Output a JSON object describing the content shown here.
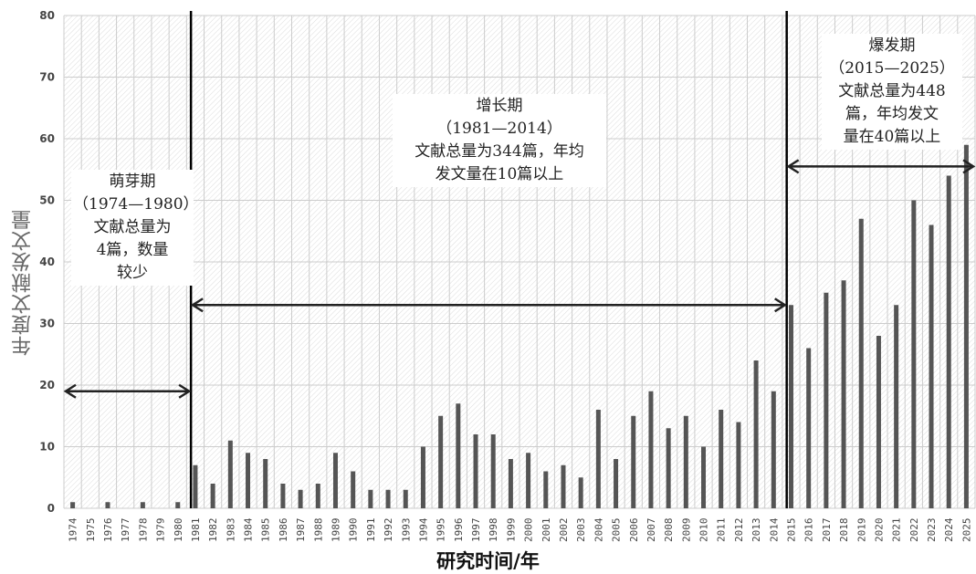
{
  "chart_data": {
    "type": "bar",
    "xlabel": "研究时间/年",
    "ylabel": "年度文献发文量",
    "ylim": [
      0,
      80
    ],
    "yticks": [
      0,
      10,
      20,
      30,
      40,
      50,
      60,
      70,
      80
    ],
    "grid": true,
    "categories": [
      "1974",
      "1975",
      "1976",
      "1977",
      "1978",
      "1979",
      "1980",
      "1981",
      "1982",
      "1983",
      "1984",
      "1985",
      "1986",
      "1987",
      "1988",
      "1989",
      "1990",
      "1991",
      "1992",
      "1993",
      "1994",
      "1995",
      "1996",
      "1997",
      "1998",
      "1999",
      "2000",
      "2001",
      "2002",
      "2003",
      "2004",
      "2005",
      "2006",
      "2007",
      "2008",
      "2009",
      "2010",
      "2011",
      "2012",
      "2013",
      "2014",
      "2015",
      "2016",
      "2017",
      "2018",
      "2019",
      "2020",
      "2021",
      "2022",
      "2023",
      "2024",
      "2025"
    ],
    "values": [
      1,
      0,
      1,
      0,
      1,
      0,
      1,
      7,
      4,
      11,
      9,
      8,
      4,
      3,
      4,
      9,
      6,
      3,
      3,
      3,
      10,
      15,
      17,
      12,
      12,
      8,
      9,
      6,
      7,
      5,
      16,
      8,
      15,
      19,
      13,
      15,
      10,
      16,
      14,
      24,
      19,
      33,
      26,
      35,
      37,
      47,
      28,
      33,
      50,
      46,
      54,
      59
    ],
    "colors": {
      "bar": "#555555",
      "grid": "#cccccc",
      "divider": "#000000",
      "arrow": "#222222"
    },
    "periods": [
      {
        "lines": [
          "萌芽期",
          "（1974—1980）",
          "文献总量为",
          "4篇，数量",
          "较少"
        ]
      },
      {
        "lines": [
          "增长期",
          "（1981—2014）",
          "文献总量为344篇，年均",
          "发文量在10篇以上"
        ]
      },
      {
        "lines": [
          "爆发期",
          "（2015—2025）",
          "文献总量为448",
          "篇，年均发文",
          "量在40篇以上"
        ]
      }
    ]
  }
}
